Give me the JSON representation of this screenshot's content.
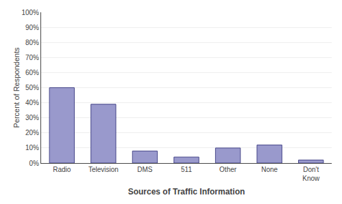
{
  "chart_data": {
    "type": "bar",
    "categories": [
      "Radio",
      "Television",
      "DMS",
      "511",
      "Other",
      "None",
      "Don't\nKnow"
    ],
    "values": [
      50,
      39,
      8,
      4,
      10,
      12,
      2
    ],
    "color": "#9999cc",
    "xlabel": "Sources of Traffic Information",
    "ylabel": "Percent of Respondents",
    "ylim": [
      0,
      100
    ],
    "yticks": [
      {
        "value": 0,
        "label": "0%"
      },
      {
        "value": 10,
        "label": "10%"
      },
      {
        "value": 20,
        "label": "20%"
      },
      {
        "value": 30,
        "label": "30%"
      },
      {
        "value": 40,
        "label": "40%"
      },
      {
        "value": 50,
        "label": "50%"
      },
      {
        "value": 60,
        "label": "60%"
      },
      {
        "value": 70,
        "label": "70%"
      },
      {
        "value": 80,
        "label": "80%"
      },
      {
        "value": 90,
        "label": "90%"
      },
      {
        "value": 100,
        "label": "100%"
      }
    ],
    "grid": true
  }
}
